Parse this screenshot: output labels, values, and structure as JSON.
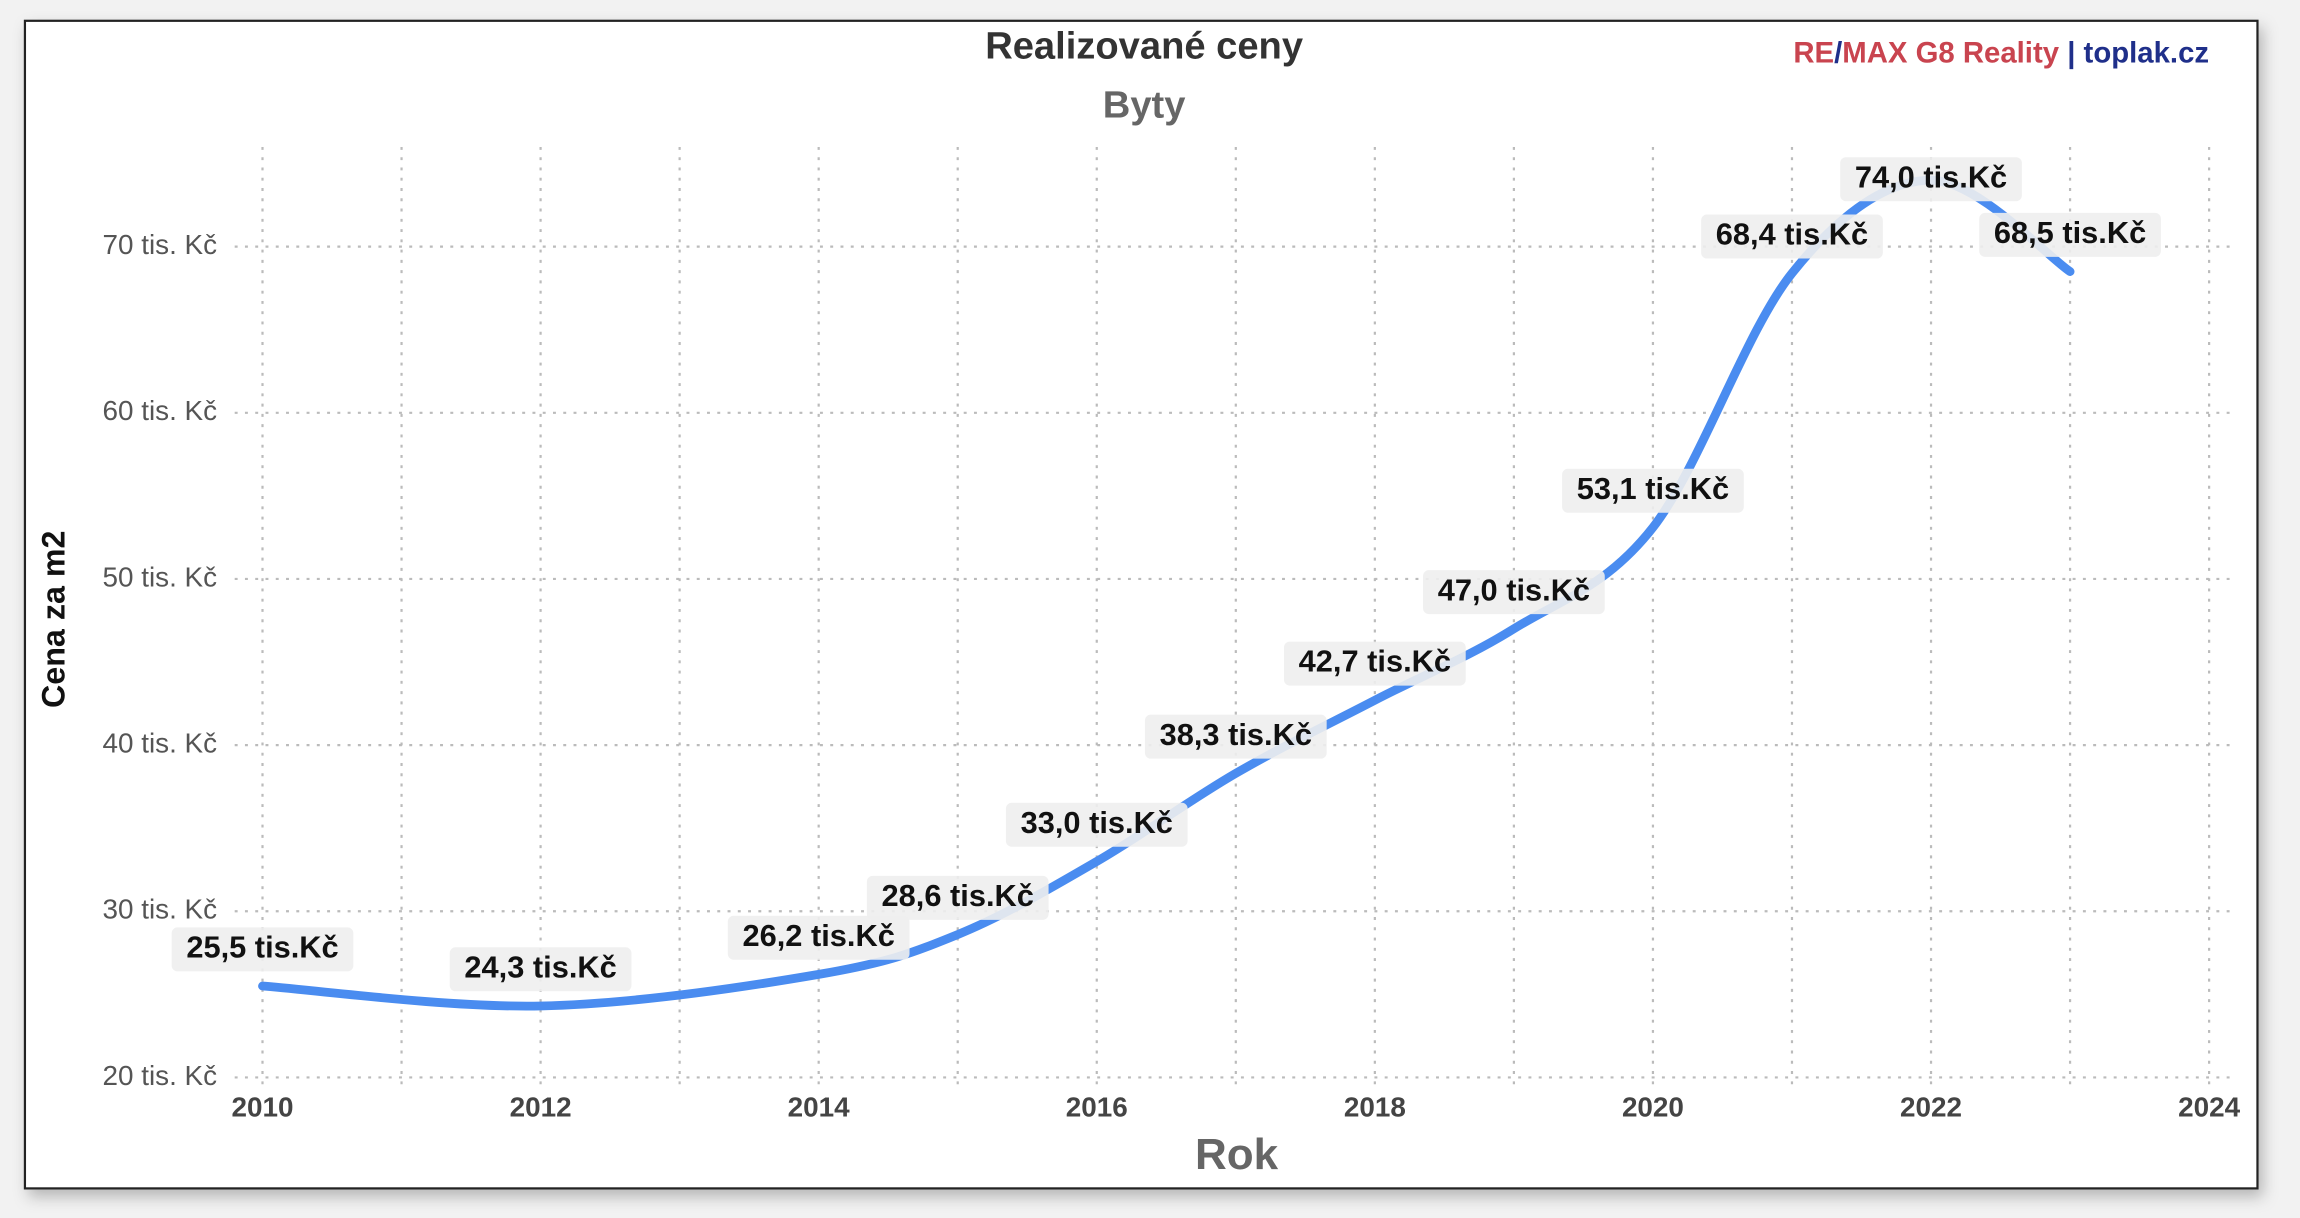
{
  "chart_data": {
    "type": "line",
    "title": "Realizované ceny",
    "subtitle": "Byty",
    "brand": [
      {
        "text": "RE",
        "color": "#c9444f"
      },
      {
        "text": "/",
        "color": "#1f2f8a"
      },
      {
        "text": "MAX G8 Reality",
        "color": "#c9444f"
      },
      {
        "text": " | toplak.cz",
        "color": "#1f2f8a"
      }
    ],
    "xlabel": "Rok",
    "ylabel": "Cena za m2",
    "x": [
      2010,
      2012,
      2014,
      2015,
      2016,
      2017,
      2018,
      2019,
      2020,
      2021,
      2022,
      2023
    ],
    "series": [
      {
        "name": "Cena",
        "color": "#4a8cf0",
        "values": [
          25.5,
          24.3,
          26.2,
          28.6,
          33.0,
          38.3,
          42.7,
          47.0,
          53.1,
          68.4,
          74.0,
          68.5
        ],
        "value_labels": [
          "25,5 tis.Kč",
          "24,3 tis.Kč",
          "26,2 tis.Kč",
          "28,6 tis.Kč",
          "33,0 tis.Kč",
          "38,3 tis.Kč",
          "42,7 tis.Kč",
          "47,0 tis.Kč",
          "53,1 tis.Kč",
          "68,4 tis.Kč",
          "74,0 tis.Kč",
          "68,5 tis.Kč"
        ]
      }
    ],
    "xlim": [
      2009.8,
      2024.2
    ],
    "xticks": [
      2010,
      2012,
      2014,
      2016,
      2018,
      2020,
      2022,
      2024
    ],
    "x_minor_ticks": [
      2011,
      2013,
      2015,
      2017,
      2019,
      2021,
      2023
    ],
    "ylim": [
      19.5,
      76
    ],
    "yticks": [
      {
        "value": 20,
        "label": "20 tis. Kč"
      },
      {
        "value": 30,
        "label": "30 tis. Kč"
      },
      {
        "value": 40,
        "label": "40 tis. Kč"
      },
      {
        "value": 50,
        "label": "50 tis. Kč"
      },
      {
        "value": 60,
        "label": "60 tis. Kč"
      },
      {
        "value": 70,
        "label": "70 tis. Kč"
      }
    ],
    "grid": true
  }
}
